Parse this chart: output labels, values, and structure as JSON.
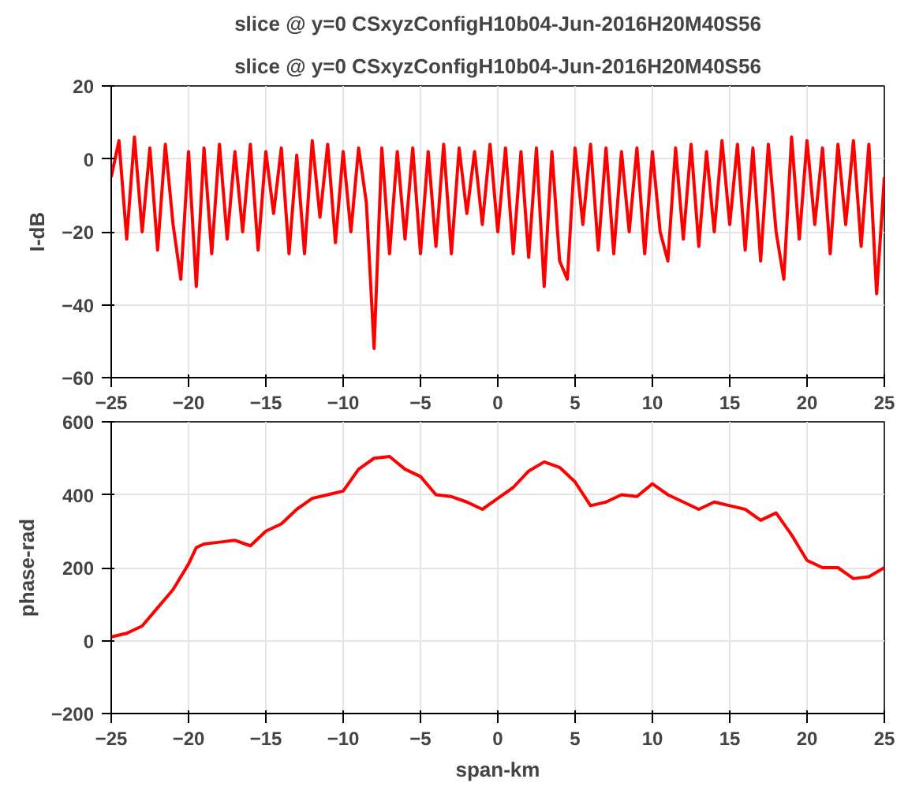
{
  "chart_data": [
    {
      "type": "line",
      "title": "slice @ y=0 CSxyzConfigH10b04-Jun-2016H20M40S56",
      "subtitle": "slice @ y=0 CSxyzConfigH10b04-Jun-2016H20M40S56",
      "ylabel": "I-dB",
      "x": [
        -25,
        -24.5,
        -24,
        -23.5,
        -23,
        -22.5,
        -22,
        -21.5,
        -21,
        -20.5,
        -20,
        -19.5,
        -19,
        -18.5,
        -18,
        -17.5,
        -17,
        -16.5,
        -16,
        -15.5,
        -15,
        -14.5,
        -14,
        -13.5,
        -13,
        -12.5,
        -12,
        -11.5,
        -11,
        -10.5,
        -10,
        -9.5,
        -9,
        -8.5,
        -8,
        -7.5,
        -7,
        -6.5,
        -6,
        -5.5,
        -5,
        -4.5,
        -4,
        -3.5,
        -3,
        -2.5,
        -2,
        -1.5,
        -1,
        -0.5,
        0,
        0.5,
        1,
        1.5,
        2,
        2.5,
        3,
        3.5,
        4,
        4.5,
        5,
        5.5,
        6,
        6.5,
        7,
        7.5,
        8,
        8.5,
        9,
        9.5,
        10,
        10.5,
        11,
        11.5,
        12,
        12.5,
        13,
        13.5,
        14,
        14.5,
        15,
        15.5,
        16,
        16.5,
        17,
        17.5,
        18,
        18.5,
        19,
        19.5,
        20,
        20.5,
        21,
        21.5,
        22,
        22.5,
        23,
        23.5,
        24,
        24.5,
        25
      ],
      "series": [
        {
          "color": "#ff0000",
          "values": [
            -5,
            5,
            -22,
            6,
            -20,
            3,
            -25,
            4,
            -18,
            -33,
            2,
            -35,
            3,
            -26,
            4,
            -22,
            2,
            -20,
            4,
            -25,
            2,
            -15,
            3,
            -26,
            1,
            -26,
            5,
            -16,
            4,
            -23,
            2,
            -20,
            3,
            -12,
            -52,
            3,
            -26,
            2,
            -22,
            3,
            -26,
            2,
            -24,
            4,
            -26,
            3,
            -15,
            2,
            -18,
            4,
            -20,
            3,
            -26,
            2,
            -27,
            3,
            -35,
            2,
            -28,
            -33,
            3,
            -18,
            4,
            -25,
            3,
            -26,
            2,
            -20,
            3,
            -26,
            2,
            -20,
            -28,
            3,
            -22,
            4,
            -24,
            2,
            -20,
            5,
            -18,
            4,
            -25,
            3,
            -28,
            4,
            -20,
            -33,
            6,
            -22,
            5,
            -18,
            3,
            -26,
            4,
            -18,
            5,
            -24,
            4,
            -37,
            -5
          ]
        }
      ],
      "xlim": [
        -25,
        25
      ],
      "xticks": [
        -25,
        -20,
        -15,
        -10,
        -5,
        0,
        5,
        10,
        15,
        20,
        25
      ],
      "ylim": [
        -60,
        20
      ],
      "yticks": [
        -60,
        -40,
        -20,
        0,
        20
      ],
      "grid": true
    },
    {
      "type": "line",
      "xlabel": "span-km",
      "ylabel": "phase-rad",
      "x": [
        -25,
        -24,
        -23,
        -22,
        -21,
        -20,
        -19.5,
        -19,
        -18,
        -17,
        -16,
        -15,
        -14,
        -13,
        -12,
        -11,
        -10,
        -9,
        -8,
        -7,
        -6,
        -5,
        -4,
        -3,
        -2,
        -1,
        0,
        1,
        2,
        3,
        4,
        5,
        6,
        7,
        8,
        9,
        10,
        11,
        12,
        13,
        14,
        15,
        16,
        17,
        18,
        19,
        20,
        21,
        22,
        23,
        24,
        25
      ],
      "series": [
        {
          "color": "#ff0000",
          "values": [
            10,
            20,
            40,
            90,
            140,
            210,
            255,
            265,
            270,
            275,
            260,
            300,
            320,
            360,
            390,
            400,
            410,
            470,
            500,
            505,
            470,
            450,
            400,
            395,
            380,
            360,
            390,
            420,
            465,
            490,
            475,
            435,
            370,
            380,
            400,
            395,
            430,
            400,
            380,
            360,
            380,
            370,
            360,
            330,
            350,
            290,
            220,
            200,
            200,
            170,
            175,
            200
          ]
        }
      ],
      "xlim": [
        -25,
        25
      ],
      "xticks": [
        -25,
        -20,
        -15,
        -10,
        -5,
        0,
        5,
        10,
        15,
        20,
        25
      ],
      "ylim": [
        -200,
        600
      ],
      "yticks": [
        -200,
        0,
        200,
        400,
        600
      ],
      "grid": true
    }
  ]
}
